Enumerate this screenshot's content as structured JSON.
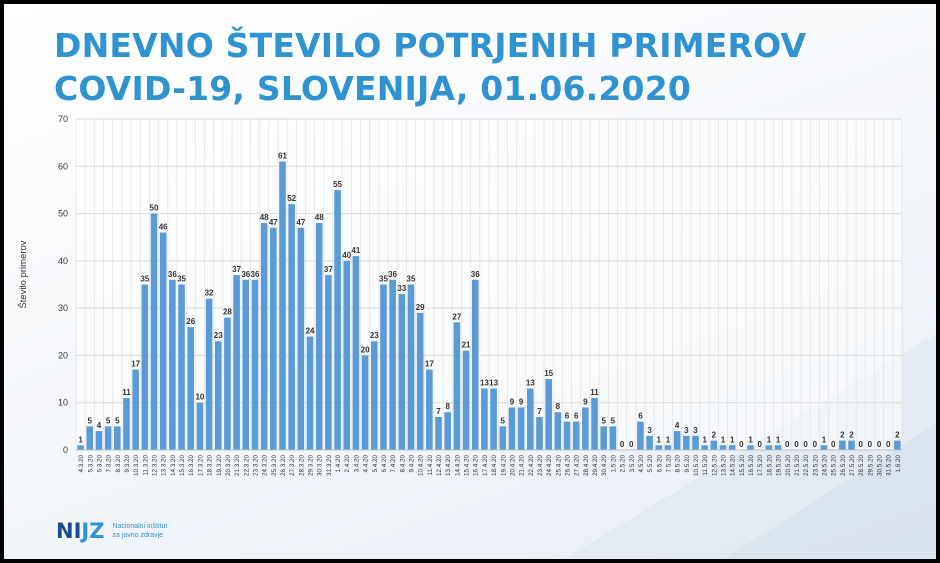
{
  "title_line1": "DNEVNO ŠTEVILO POTRJENIH PRIMEROV",
  "title_line2": "COVID-19, SLOVENIJA, 01.06.2020",
  "logo": {
    "mark_a": "NI",
    "mark_b": "JZ",
    "text_line1": "Nacionalni inštitut",
    "text_line2": "za javno zdravje"
  },
  "colors": {
    "bar": "#5b9bd5",
    "title": "#2f93d1",
    "grid": "#d9d9d9"
  },
  "chart_data": {
    "type": "bar",
    "title": "",
    "xlabel": "",
    "ylabel": "Število primerov",
    "ylim": [
      0,
      70
    ],
    "yticks": [
      0,
      10,
      20,
      30,
      40,
      50,
      60,
      70
    ],
    "grid": true,
    "legend": "none",
    "categories": [
      "4.3.20",
      "5.3.20",
      "6.3.20",
      "7.3.20",
      "8.3.20",
      "9.3.20",
      "10.3.20",
      "11.3.20",
      "12.3.20",
      "13.3.20",
      "14.3.20",
      "15.3.20",
      "16.3.20",
      "17.3.20",
      "18.3.20",
      "19.3.20",
      "20.3.20",
      "21.3.20",
      "22.3.20",
      "23.3.20",
      "24.3.20",
      "25.3.20",
      "26.3.20",
      "27.3.20",
      "28.3.20",
      "29.3.20",
      "30.3.20",
      "31.3.20",
      "1.4.20",
      "2.4.20",
      "3.4.20",
      "4.4.20",
      "5.4.20",
      "6.4.20",
      "7.4.20",
      "8.4.20",
      "9.4.20",
      "10.4.20",
      "11.4.20",
      "12.4.20",
      "13.4.20",
      "14.4.20",
      "15.4.20",
      "16.4.20",
      "17.4.20",
      "18.4.20",
      "19.4.20",
      "20.4.20",
      "21.4.20",
      "22.4.20",
      "23.4.20",
      "24.4.20",
      "25.4.20",
      "26.4.20",
      "27.4.20",
      "28.4.20",
      "29.4.20",
      "30.4.20",
      "1.5.20",
      "2.5.20",
      "3.5.20",
      "4.5.20",
      "5.5.20",
      "6.5.20",
      "7.5.20",
      "8.5.20",
      "9.5.20",
      "10.5.20",
      "11.5.20",
      "12.5.20",
      "13.5.20",
      "14.5.20",
      "15.5.20",
      "16.5.20",
      "17.5.20",
      "18.5.20",
      "19.5.20",
      "20.5.20",
      "21.5.20",
      "22.5.20",
      "23.5.20",
      "24.5.20",
      "25.5.20",
      "26.5.20",
      "27.5.20",
      "28.5.20",
      "29.5.20",
      "30.5.20",
      "31.5.20",
      "1.6.20"
    ],
    "values": [
      1,
      5,
      4,
      5,
      5,
      11,
      17,
      35,
      50,
      46,
      36,
      35,
      26,
      10,
      32,
      23,
      28,
      37,
      36,
      36,
      48,
      47,
      61,
      52,
      47,
      24,
      48,
      37,
      55,
      40,
      41,
      20,
      23,
      35,
      36,
      33,
      35,
      29,
      17,
      7,
      8,
      27,
      21,
      36,
      13,
      13,
      5,
      9,
      9,
      13,
      7,
      15,
      8,
      6,
      6,
      9,
      11,
      5,
      5,
      0,
      0,
      6,
      3,
      1,
      1,
      4,
      3,
      3,
      1,
      2,
      1,
      1,
      0,
      1,
      0,
      1,
      1,
      0,
      0,
      0,
      0,
      1,
      0,
      2,
      2,
      0,
      0,
      0,
      0,
      2
    ]
  }
}
